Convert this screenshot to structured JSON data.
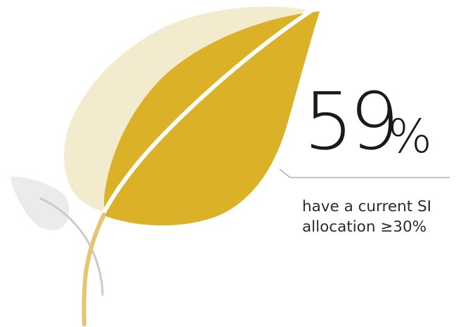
{
  "colors": {
    "leaf_main": "#dbb127",
    "leaf_back": "#f3ebcd",
    "leaf_small": "#ebebeb",
    "stem_main": "#e4c66e",
    "stem_small": "#cbcbcb",
    "rule": "#8a8a8a",
    "text": "#1a1a1a"
  },
  "stat": {
    "number": "59",
    "unit": "%"
  },
  "caption": {
    "line1": "have a current SI",
    "line2": "allocation ≥30%"
  }
}
